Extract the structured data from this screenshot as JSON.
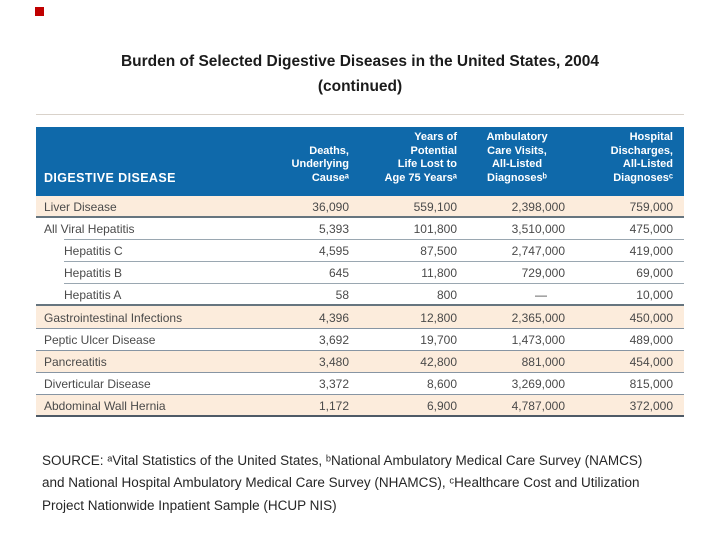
{
  "slide": {
    "title_line1": "Burden of Selected Digestive Diseases in the United States, 2004",
    "title_line2": "(continued)"
  },
  "theme": {
    "header_bg": "#0f69aa",
    "stripe_bg": "#fcecdc",
    "accent_red": "#c00000",
    "header_text": "#ffffff",
    "body_text": "#4a4a4a",
    "row_line": "#8795a3",
    "group_line": "#66757f",
    "bottom_line": "#4e5a66",
    "title_text": "#1b1b1b",
    "source_text": "#262626"
  },
  "table": {
    "columns": [
      {
        "label": "DIGESTIVE DISEASE"
      },
      {
        "label": "Deaths,\nUnderlying\nCauseᵃ"
      },
      {
        "label": "Years of\nPotential\nLife Lost to\nAge 75 Yearsᵃ"
      },
      {
        "label": "Ambulatory\nCare Visits,\nAll-Listed\nDiagnosesᵇ"
      },
      {
        "label": "Hospital\nDischarges,\nAll-Listed\nDiagnosesᶜ"
      }
    ],
    "rows": [
      {
        "disease": "Liver Disease",
        "indent": false,
        "deaths": "36,090",
        "ypll": "559,100",
        "ambulatory": "2,398,000",
        "hospital": "759,000"
      },
      {
        "disease": "All Viral Hepatitis",
        "indent": false,
        "deaths": "5,393",
        "ypll": "101,800",
        "ambulatory": "3,510,000",
        "hospital": "475,000"
      },
      {
        "disease": "Hepatitis C",
        "indent": true,
        "deaths": "4,595",
        "ypll": "87,500",
        "ambulatory": "2,747,000",
        "hospital": "419,000"
      },
      {
        "disease": "Hepatitis B",
        "indent": true,
        "deaths": "645",
        "ypll": "11,800",
        "ambulatory": "729,000",
        "hospital": "69,000"
      },
      {
        "disease": "Hepatitis A",
        "indent": true,
        "deaths": "58",
        "ypll": "800",
        "ambulatory": "—",
        "hospital": "10,000"
      },
      {
        "disease": "Gastrointestinal Infections",
        "indent": false,
        "deaths": "4,396",
        "ypll": "12,800",
        "ambulatory": "2,365,000",
        "hospital": "450,000"
      },
      {
        "disease": "Peptic Ulcer Disease",
        "indent": false,
        "deaths": "3,692",
        "ypll": "19,700",
        "ambulatory": "1,473,000",
        "hospital": "489,000"
      },
      {
        "disease": "Pancreatitis",
        "indent": false,
        "deaths": "3,480",
        "ypll": "42,800",
        "ambulatory": "881,000",
        "hospital": "454,000"
      },
      {
        "disease": "Diverticular Disease",
        "indent": false,
        "deaths": "3,372",
        "ypll": "8,600",
        "ambulatory": "3,269,000",
        "hospital": "815,000"
      },
      {
        "disease": "Abdominal Wall Hernia",
        "indent": false,
        "deaths": "1,172",
        "ypll": "6,900",
        "ambulatory": "4,787,000",
        "hospital": "372,000"
      }
    ]
  },
  "source": {
    "lines": [
      "SOURCE: ᵃVital Statistics of the United States, ᵇNational Ambulatory Medical Care Survey (NAMCS)",
      "and National Hospital Ambulatory Medical Care Survey (NHAMCS), ᶜHealthcare Cost and Utilization",
      "Project Nationwide Inpatient Sample (HCUP NIS)"
    ]
  }
}
